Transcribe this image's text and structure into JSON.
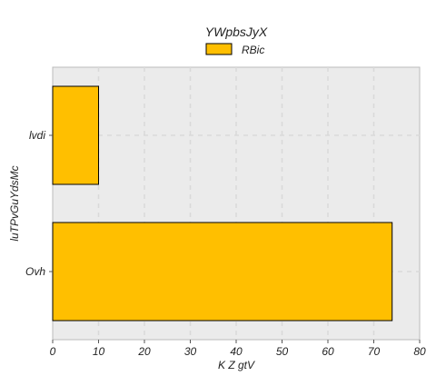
{
  "chart_data": {
    "type": "bar",
    "orientation": "horizontal",
    "title": "YWpbsJyX",
    "xlabel": "K Z gtV",
    "ylabel": "luTPvGuYdsMc",
    "categories": [
      "lvdi",
      "Ovh"
    ],
    "series": [
      {
        "name": "RBic",
        "values": [
          10,
          74
        ]
      }
    ],
    "xlim": [
      0,
      80
    ],
    "x_ticks": [
      0,
      10,
      20,
      30,
      40,
      50,
      60,
      70,
      80
    ],
    "grid": true,
    "legend": "top-center",
    "colors": {
      "bar": "#FFBF00",
      "bar_edge": "#000000",
      "plot_bg": "#EBEBEB",
      "grid": "#D9D9D9"
    }
  }
}
